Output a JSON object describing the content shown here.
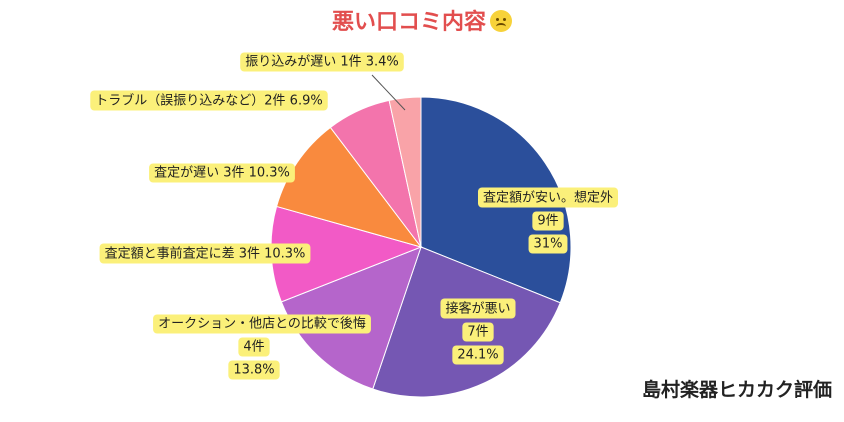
{
  "title": "悪い口コミ内容",
  "title_emoji": "frowning-face-icon",
  "brand": "島村楽器ヒカカク評価",
  "chart_data": {
    "type": "pie",
    "start": "top",
    "direction": "clockwise",
    "slices": [
      {
        "label": "査定額が安い。想定外",
        "count_text": "9件",
        "pct_text": "31%",
        "value": 31.0,
        "color": "#2b4f9b"
      },
      {
        "label": "接客が悪い",
        "count_text": "7件",
        "pct_text": "24.1%",
        "value": 24.1,
        "color": "#7557b3"
      },
      {
        "label": "オークション・他店との比較で後悔",
        "count_text": "4件",
        "pct_text": "13.8%",
        "value": 13.8,
        "color": "#b565cb"
      },
      {
        "label": "査定額と事前査定に差",
        "count_text": "3件",
        "pct_text": "10.3%",
        "value": 10.3,
        "color": "#f25ac6"
      },
      {
        "label": "査定が遅い",
        "count_text": "3件",
        "pct_text": "10.3%",
        "value": 10.3,
        "color": "#f98a3e"
      },
      {
        "label": "トラブル（誤振り込みなど）",
        "count_text": "2件",
        "pct_text": "6.9%",
        "value": 6.9,
        "color": "#f374ac"
      },
      {
        "label": "振り込みが遅い",
        "count_text": "1件",
        "pct_text": "3.4%",
        "value": 3.4,
        "color": "#f9a3a8"
      }
    ],
    "callouts": [
      "査定額が安い。想定外",
      "9件",
      "31%",
      "接客が悪い",
      "7件",
      "24.1%",
      "オークション・他店との比較で後悔",
      "4件",
      "13.8%",
      "査定額と事前査定に差 3件 10.3%",
      "査定が遅い 3件 10.3%",
      "トラブル（誤振り込みなど）2件 6.9%",
      "振り込みが遅い 1件 3.4%"
    ],
    "label_bg": "#fbf07a"
  }
}
